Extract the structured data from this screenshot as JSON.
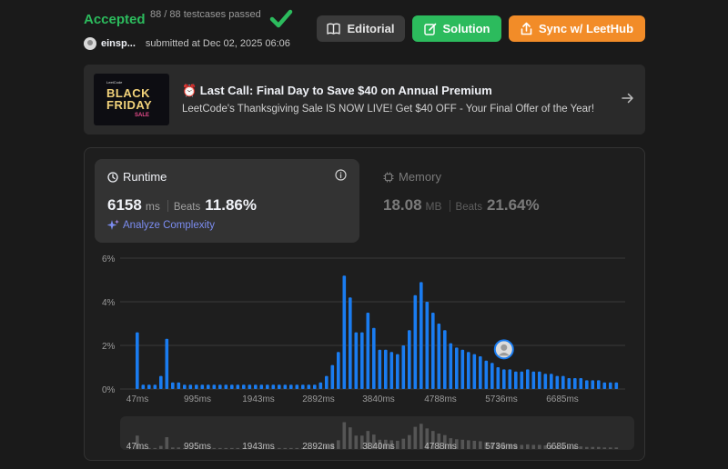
{
  "header": {
    "status": "Accepted",
    "testcases": "88 / 88 testcases passed",
    "username": "einsp...",
    "submitted": "submitted at Dec 02, 2025 06:06"
  },
  "buttons": {
    "editorial": "Editorial",
    "solution": "Solution",
    "sync": "Sync w/ LeetHub"
  },
  "promo": {
    "image_text_small": "LeetCode",
    "image_text_1": "BLACK",
    "image_text_2": "FRIDAY",
    "image_text_3": "SALE",
    "title": "⏰ Last Call: Final Day to Save $40 on Annual Premium",
    "subtitle": "LeetCode's Thanksgiving Sale IS NOW LIVE! Get $40 OFF - Your Final Offer of the Year!"
  },
  "runtime": {
    "label": "Runtime",
    "value": "6158",
    "unit": "ms",
    "beats_label": "Beats",
    "beats": "11.86%",
    "analyze": "Analyze Complexity"
  },
  "memory": {
    "label": "Memory",
    "value": "18.08",
    "unit": "MB",
    "beats_label": "Beats",
    "beats": "21.64%"
  },
  "colors": {
    "accepted": "#2cbb5d",
    "bar": "#1a7cf0",
    "nav_bar": "#555555",
    "sync": "#f28c28"
  },
  "chart_data": {
    "type": "bar",
    "ylabel_ticks": [
      "0%",
      "2%",
      "4%",
      "6%"
    ],
    "ylim": [
      0,
      6
    ],
    "xtick_labels": [
      "47ms",
      "995ms",
      "1943ms",
      "2892ms",
      "3840ms",
      "4788ms",
      "5736ms",
      "6685ms"
    ],
    "values": [
      2.6,
      0.2,
      0.2,
      0.2,
      0.6,
      2.3,
      0.3,
      0.3,
      0.2,
      0.2,
      0.2,
      0.2,
      0.2,
      0.2,
      0.2,
      0.2,
      0.2,
      0.2,
      0.2,
      0.2,
      0.2,
      0.2,
      0.2,
      0.2,
      0.2,
      0.2,
      0.2,
      0.2,
      0.2,
      0.2,
      0.2,
      0.3,
      0.6,
      1.1,
      1.7,
      5.2,
      4.2,
      2.6,
      2.6,
      3.5,
      2.8,
      1.8,
      1.8,
      1.7,
      1.6,
      2.0,
      2.7,
      4.3,
      4.9,
      4.0,
      3.5,
      3.0,
      2.7,
      2.1,
      1.9,
      1.8,
      1.7,
      1.6,
      1.5,
      1.3,
      1.2,
      1.0,
      0.9,
      0.9,
      0.8,
      0.8,
      0.9,
      0.8,
      0.8,
      0.7,
      0.7,
      0.6,
      0.6,
      0.5,
      0.5,
      0.5,
      0.4,
      0.4,
      0.4,
      0.3,
      0.3,
      0.3
    ],
    "highlight_index": 62,
    "grid": true
  }
}
